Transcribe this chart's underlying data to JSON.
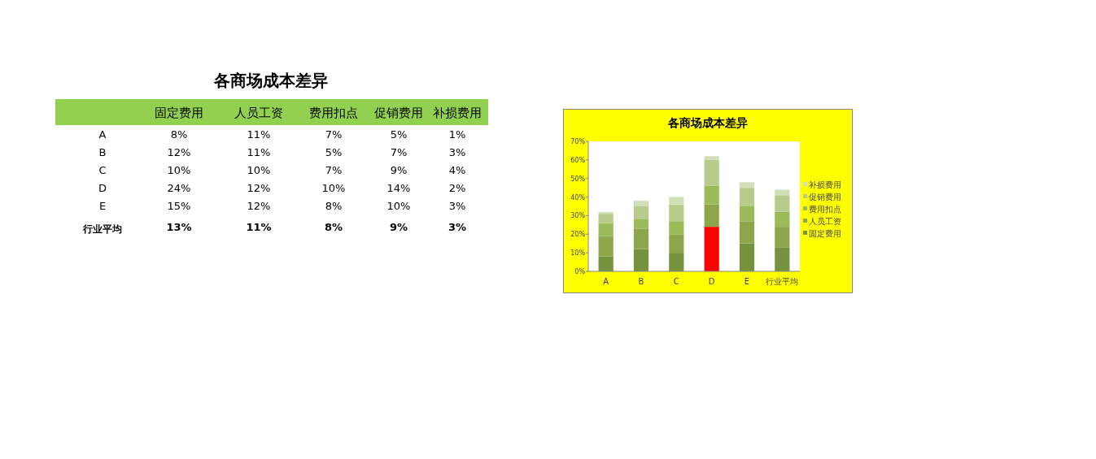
{
  "chart_data": [
    {
      "type": "heatmap",
      "title": "各商场成本差异",
      "categories": [
        "固定费用",
        "人员工资",
        "费用扣点",
        "促销费用",
        "补损费用"
      ],
      "y_categories": [
        "A",
        "B",
        "C",
        "D",
        "E",
        "行业平均"
      ],
      "cells": [
        [
          8,
          11,
          7,
          5,
          1
        ],
        [
          12,
          11,
          5,
          7,
          3
        ],
        [
          10,
          10,
          7,
          9,
          4
        ],
        [
          24,
          12,
          10,
          14,
          2
        ],
        [
          15,
          12,
          8,
          10,
          3
        ],
        [
          13,
          11,
          8,
          9,
          3
        ]
      ],
      "cell_labels": [
        [
          "8%",
          "11%",
          "7%",
          "5%",
          "1%"
        ],
        [
          "12%",
          "11%",
          "5%",
          "7%",
          "3%"
        ],
        [
          "10%",
          "10%",
          "7%",
          "9%",
          "4%"
        ],
        [
          "24%",
          "12%",
          "10%",
          "14%",
          "2%"
        ],
        [
          "15%",
          "12%",
          "8%",
          "10%",
          "3%"
        ],
        [
          "13%",
          "11%",
          "8%",
          "9%",
          "3%"
        ]
      ]
    },
    {
      "type": "bar",
      "stacked": true,
      "title": "各商场成本差异",
      "categories": [
        "A",
        "B",
        "C",
        "D",
        "E",
        "行业平均"
      ],
      "series": [
        {
          "name": "固定费用",
          "color": "#76923c",
          "colors": [
            "#76923c",
            "#76923c",
            "#76923c",
            "#ff0000",
            "#76923c",
            "#76923c"
          ],
          "values": [
            8,
            12,
            10,
            24,
            15,
            13
          ]
        },
        {
          "name": "人员工资",
          "color": "#8ea64a",
          "values": [
            11,
            11,
            10,
            12,
            12,
            11
          ]
        },
        {
          "name": "费用扣点",
          "color": "#9bbb59",
          "values": [
            7,
            5,
            7,
            10,
            8,
            8
          ]
        },
        {
          "name": "促销费用",
          "color": "#b7cc8a",
          "values": [
            5,
            7,
            9,
            14,
            10,
            9
          ]
        },
        {
          "name": "补损费用",
          "color": "#d3dfb6",
          "values": [
            1,
            3,
            4,
            2,
            3,
            3
          ]
        }
      ],
      "ylim": [
        0,
        70
      ],
      "yticks": [
        {
          "value": 0,
          "label": "0%"
        },
        {
          "value": 10,
          "label": "10%"
        },
        {
          "value": 20,
          "label": "20%"
        },
        {
          "value": 30,
          "label": "30%"
        },
        {
          "value": 40,
          "label": "40%"
        },
        {
          "value": 50,
          "label": "50%"
        },
        {
          "value": 60,
          "label": "60%"
        },
        {
          "value": 70,
          "label": "70%"
        }
      ],
      "legend": "right",
      "grid": false
    }
  ]
}
